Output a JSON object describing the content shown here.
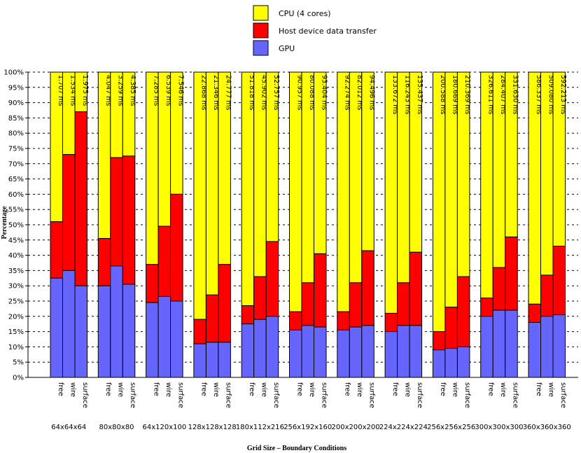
{
  "chart_data": {
    "type": "bar",
    "stacked": true,
    "percent_stacked": true,
    "ylabel": "Percentage",
    "xlabel": "Grid Size – Boundary Conditions",
    "ylim": [
      0,
      100
    ],
    "ytick_labels": [
      "0%",
      "5%",
      "10%",
      "15%",
      "20%",
      "25%",
      "30%",
      "35%",
      "40%",
      "45%",
      "50%",
      "55%",
      "60%",
      "65%",
      "70%",
      "75%",
      "80%",
      "85%",
      "90%",
      "95%",
      "100%"
    ],
    "legend": [
      {
        "name": "CPU (4 cores)",
        "color": "#ffff00"
      },
      {
        "name": "Host device data transfer",
        "color": "#ff0000"
      },
      {
        "name": "GPU",
        "color": "#6666ff"
      }
    ],
    "legend_position": "top",
    "boundary_conditions": [
      "free",
      "wire",
      "surface"
    ],
    "groups": [
      {
        "name": "64x64x64",
        "times": [
          "1.707 ms",
          "1.534 ms",
          "1.975 ms"
        ],
        "gpu": [
          32.5,
          35,
          30
        ],
        "transfer": [
          18.5,
          38,
          57
        ]
      },
      {
        "name": "80x80x80",
        "times": [
          "4.047 ms",
          "3.259 ms",
          "4.385 ms"
        ],
        "gpu": [
          30,
          36.5,
          30.5
        ],
        "transfer": [
          15.5,
          35.5,
          42
        ]
      },
      {
        "name": "64x120x100",
        "times": [
          "7.285 ms",
          "6.539 ms",
          "7.546 ms"
        ],
        "gpu": [
          24.5,
          26.5,
          25
        ],
        "transfer": [
          12.5,
          23,
          35
        ]
      },
      {
        "name": "128x128x128",
        "times": [
          "22.868 ms",
          "21.346 ms",
          "24.777 ms"
        ],
        "gpu": [
          11,
          11.5,
          11.5
        ],
        "transfer": [
          8,
          15.5,
          25.5
        ]
      },
      {
        "name": "180x112x216",
        "times": [
          "51.818 ms",
          "45.902 ms",
          "52.757 ms"
        ],
        "gpu": [
          17.5,
          19,
          20
        ],
        "transfer": [
          6,
          14,
          24.5
        ]
      },
      {
        "name": "256x192x160",
        "times": [
          "90.957 ms",
          "80.088 ms",
          "93.404 ms"
        ],
        "gpu": [
          15.5,
          17,
          16.5
        ],
        "transfer": [
          6,
          14,
          24
        ]
      },
      {
        "name": "200x200x200",
        "times": [
          "92.274 ms",
          "82.012 ms",
          "94.496 ms"
        ],
        "gpu": [
          15.5,
          16.5,
          17
        ],
        "transfer": [
          6,
          14.5,
          24.5
        ]
      },
      {
        "name": "224x224x224",
        "times": [
          "133.672 ms",
          "116.243 ms",
          "135.437 ms"
        ],
        "gpu": [
          15,
          17,
          17
        ],
        "transfer": [
          6,
          14,
          24
        ]
      },
      {
        "name": "256x256x256",
        "times": [
          "200.588 ms",
          "180.669 ms",
          "210.369 ms"
        ],
        "gpu": [
          9,
          9.5,
          10
        ],
        "transfer": [
          6,
          13.5,
          23
        ]
      },
      {
        "name": "300x300x300",
        "times": [
          "326.611 ms",
          "284.407 ms",
          "331.630 ms"
        ],
        "gpu": [
          20,
          22,
          22
        ],
        "transfer": [
          6,
          14,
          24
        ]
      },
      {
        "name": "360x360x360",
        "times": [
          "586.337 ms",
          "509.080 ms",
          "592.213 ms"
        ],
        "gpu": [
          18,
          20,
          20.5
        ],
        "transfer": [
          6,
          13.5,
          22.5
        ]
      }
    ]
  }
}
